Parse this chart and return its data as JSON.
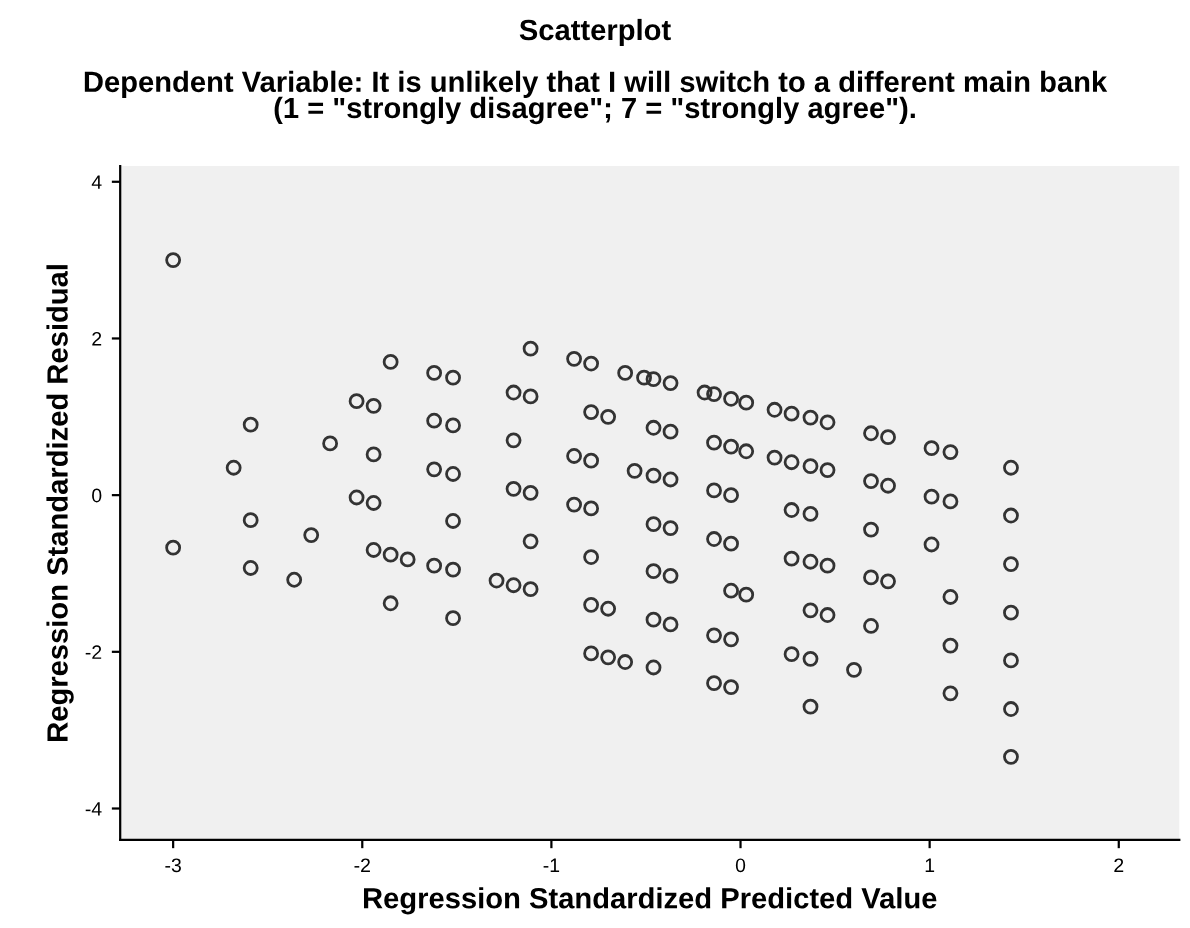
{
  "chart_data": {
    "type": "scatter",
    "title": "Scatterplot",
    "subtitle": "Dependent Variable: It is unlikely that I will switch to a different main bank\n(1 = \"strongly disagree\"; 7 = \"strongly agree\").",
    "xlabel": "Regression Standardized Predicted Value",
    "ylabel": "Regression Standardized Residual",
    "series": [
      {
        "color": "#333333",
        "x": [
          -3.0,
          -3.0,
          -2.59,
          -2.68,
          -2.59,
          -2.59,
          -2.36,
          -2.27,
          -2.17,
          -2.03,
          -1.94,
          -1.94,
          -2.03,
          -1.94,
          -1.94,
          -1.85,
          -1.76,
          -1.85,
          -1.85,
          -1.62,
          -1.52,
          -1.62,
          -1.52,
          -1.62,
          -1.52,
          -1.52,
          -1.62,
          -1.52,
          -1.52,
          -1.2,
          -1.11,
          -1.11,
          -1.2,
          -1.2,
          -1.11,
          -1.11,
          -1.29,
          -1.2,
          -1.11,
          -0.88,
          -0.79,
          -0.79,
          -0.7,
          -0.88,
          -0.79,
          -0.88,
          -0.79,
          -0.79,
          -0.79,
          -0.7,
          -0.79,
          -0.7,
          -0.61,
          -0.61,
          -0.51,
          -0.46,
          -0.37,
          -0.46,
          -0.37,
          -0.56,
          -0.46,
          -0.37,
          -0.46,
          -0.37,
          -0.46,
          -0.37,
          -0.46,
          -0.37,
          -0.46,
          -0.19,
          -0.14,
          -0.05,
          0.03,
          -0.14,
          -0.05,
          0.03,
          -0.14,
          -0.05,
          -0.14,
          -0.05,
          -0.05,
          0.03,
          -0.14,
          -0.05,
          -0.14,
          -0.05,
          0.18,
          0.27,
          0.37,
          0.46,
          0.18,
          0.27,
          0.37,
          0.46,
          0.27,
          0.37,
          0.27,
          0.37,
          0.46,
          0.37,
          0.46,
          0.27,
          0.37,
          0.37,
          0.6,
          0.69,
          0.78,
          0.69,
          0.78,
          0.69,
          0.69,
          0.78,
          0.69,
          1.01,
          1.11,
          1.01,
          1.11,
          1.01,
          1.11,
          1.11,
          1.11,
          1.43,
          1.43,
          1.43,
          1.43,
          1.43,
          1.43,
          1.43
        ],
        "values": [
          3.0,
          -0.67,
          0.9,
          0.35,
          -0.32,
          -0.93,
          -1.08,
          -0.51,
          0.66,
          1.2,
          1.14,
          0.52,
          -0.03,
          -0.1,
          -0.7,
          -0.76,
          -0.82,
          1.7,
          -1.38,
          1.56,
          1.5,
          0.95,
          0.89,
          0.33,
          0.27,
          -0.33,
          -0.9,
          -0.95,
          -1.57,
          1.31,
          1.26,
          1.87,
          0.7,
          0.08,
          0.03,
          -0.59,
          -1.09,
          -1.15,
          -1.2,
          1.74,
          1.68,
          1.06,
          1.0,
          0.5,
          0.44,
          -0.12,
          -0.17,
          -0.79,
          -1.4,
          -1.45,
          -2.02,
          -2.07,
          -2.13,
          1.56,
          1.5,
          1.48,
          1.43,
          0.86,
          0.81,
          0.31,
          0.25,
          0.2,
          -0.37,
          -0.42,
          -0.97,
          -1.03,
          -1.59,
          -1.65,
          -2.2,
          1.31,
          1.29,
          1.23,
          1.18,
          0.67,
          0.62,
          0.56,
          0.06,
          0.0,
          -0.56,
          -0.62,
          -1.22,
          -1.27,
          -1.79,
          -1.84,
          -2.4,
          -2.45,
          1.09,
          1.04,
          0.99,
          0.93,
          0.48,
          0.42,
          0.37,
          0.32,
          -0.19,
          -0.24,
          -0.81,
          -0.85,
          -0.9,
          -1.47,
          -1.53,
          -2.03,
          -2.09,
          -2.7,
          -2.23,
          0.79,
          0.74,
          0.18,
          0.12,
          -0.44,
          -1.05,
          -1.1,
          -1.67,
          0.6,
          0.55,
          -0.02,
          -0.08,
          -0.63,
          -1.3,
          -1.92,
          -2.53,
          0.35,
          -0.26,
          -0.88,
          -1.5,
          -2.11,
          -2.73,
          -3.34
        ]
      }
    ],
    "marker": "circle",
    "grid": false,
    "legend": false,
    "xlim": [
      -3.28,
      2.32
    ],
    "ylim": [
      -4.4,
      4.2
    ],
    "xticks": [
      -3,
      -2,
      -1,
      0,
      1,
      2
    ],
    "yticks": [
      -4,
      -2,
      0,
      2,
      4
    ]
  }
}
